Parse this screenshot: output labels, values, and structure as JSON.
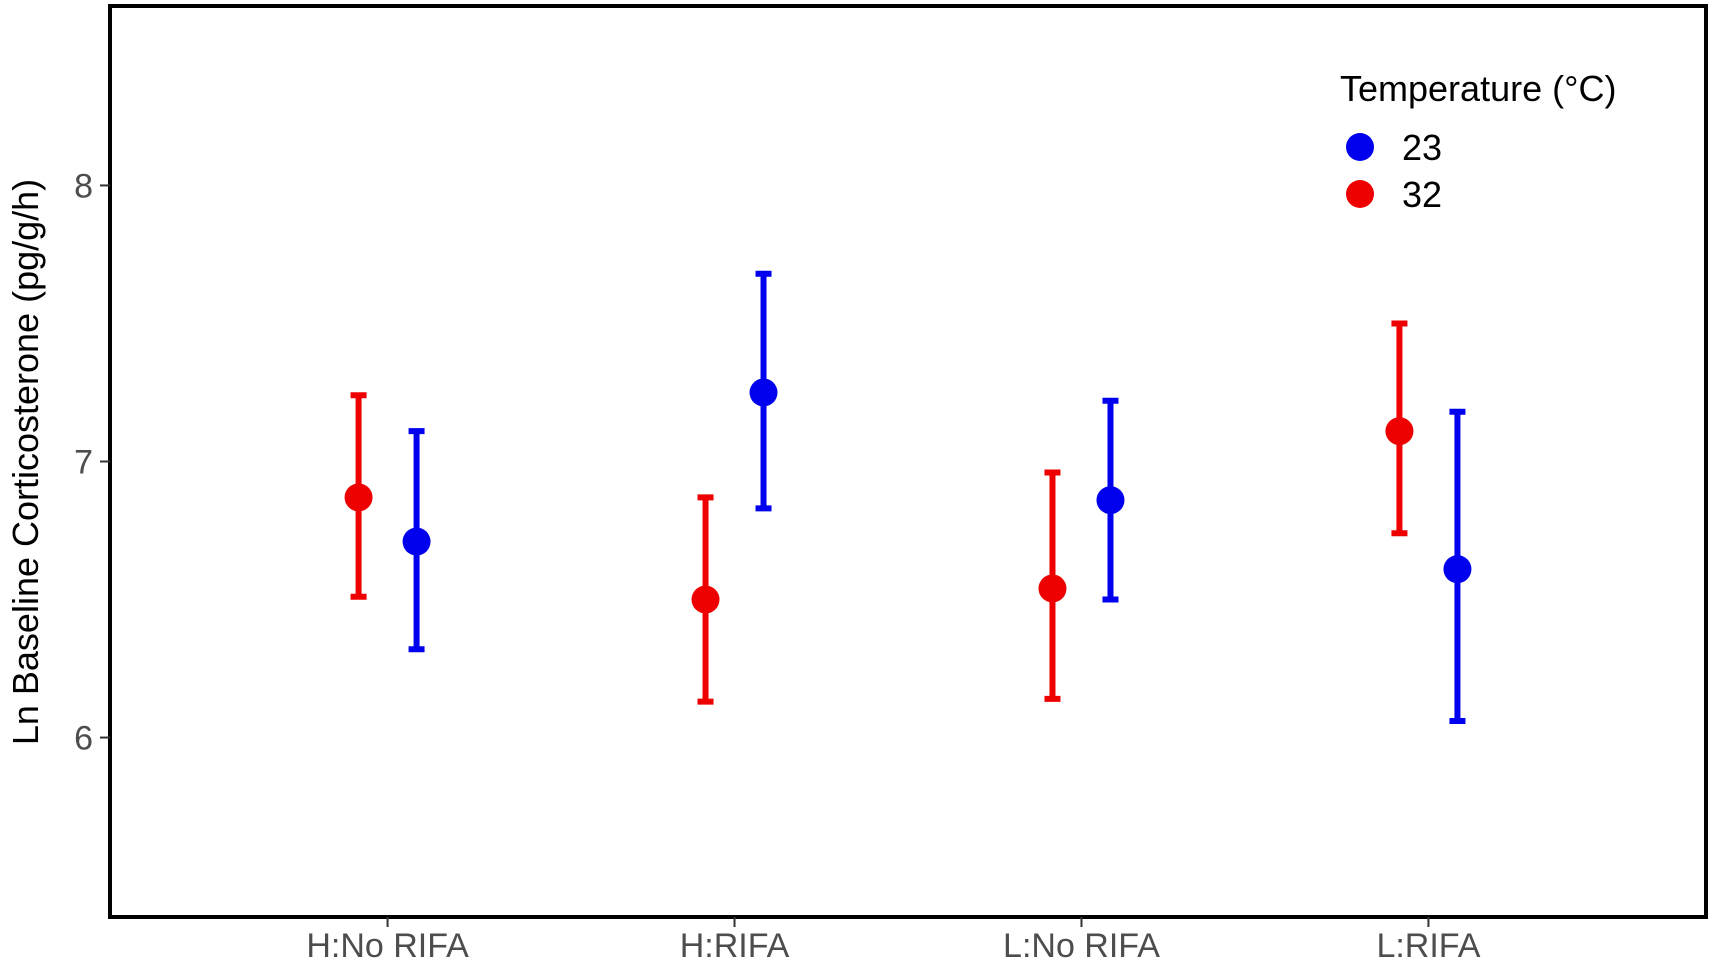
{
  "chart_data": {
    "type": "scatter",
    "subtype": "point-with-errorbars",
    "categories": [
      "H:No RIFA",
      "H:RIFA",
      "L:No RIFA",
      "L:RIFA"
    ],
    "ylabel": "Ln Baseline Corticosterone (pg/g/h)",
    "xlabel": "",
    "ylim": [
      5.35,
      8.65
    ],
    "yticks": [
      6,
      7,
      8
    ],
    "grid": false,
    "legend": {
      "title": "Temperature (°C)",
      "placement": "top-right"
    },
    "series": [
      {
        "name": "23",
        "color": "#0000ee",
        "values": [
          6.71,
          7.25,
          6.86,
          6.61
        ],
        "lower": [
          6.32,
          6.83,
          6.5,
          6.06
        ],
        "upper": [
          7.11,
          7.68,
          7.22,
          7.18
        ]
      },
      {
        "name": "32",
        "color": "#ee0000",
        "values": [
          6.87,
          6.5,
          6.54,
          7.11
        ],
        "lower": [
          6.51,
          6.13,
          6.14,
          6.74
        ],
        "upper": [
          7.24,
          6.87,
          6.96,
          7.5
        ]
      }
    ]
  }
}
